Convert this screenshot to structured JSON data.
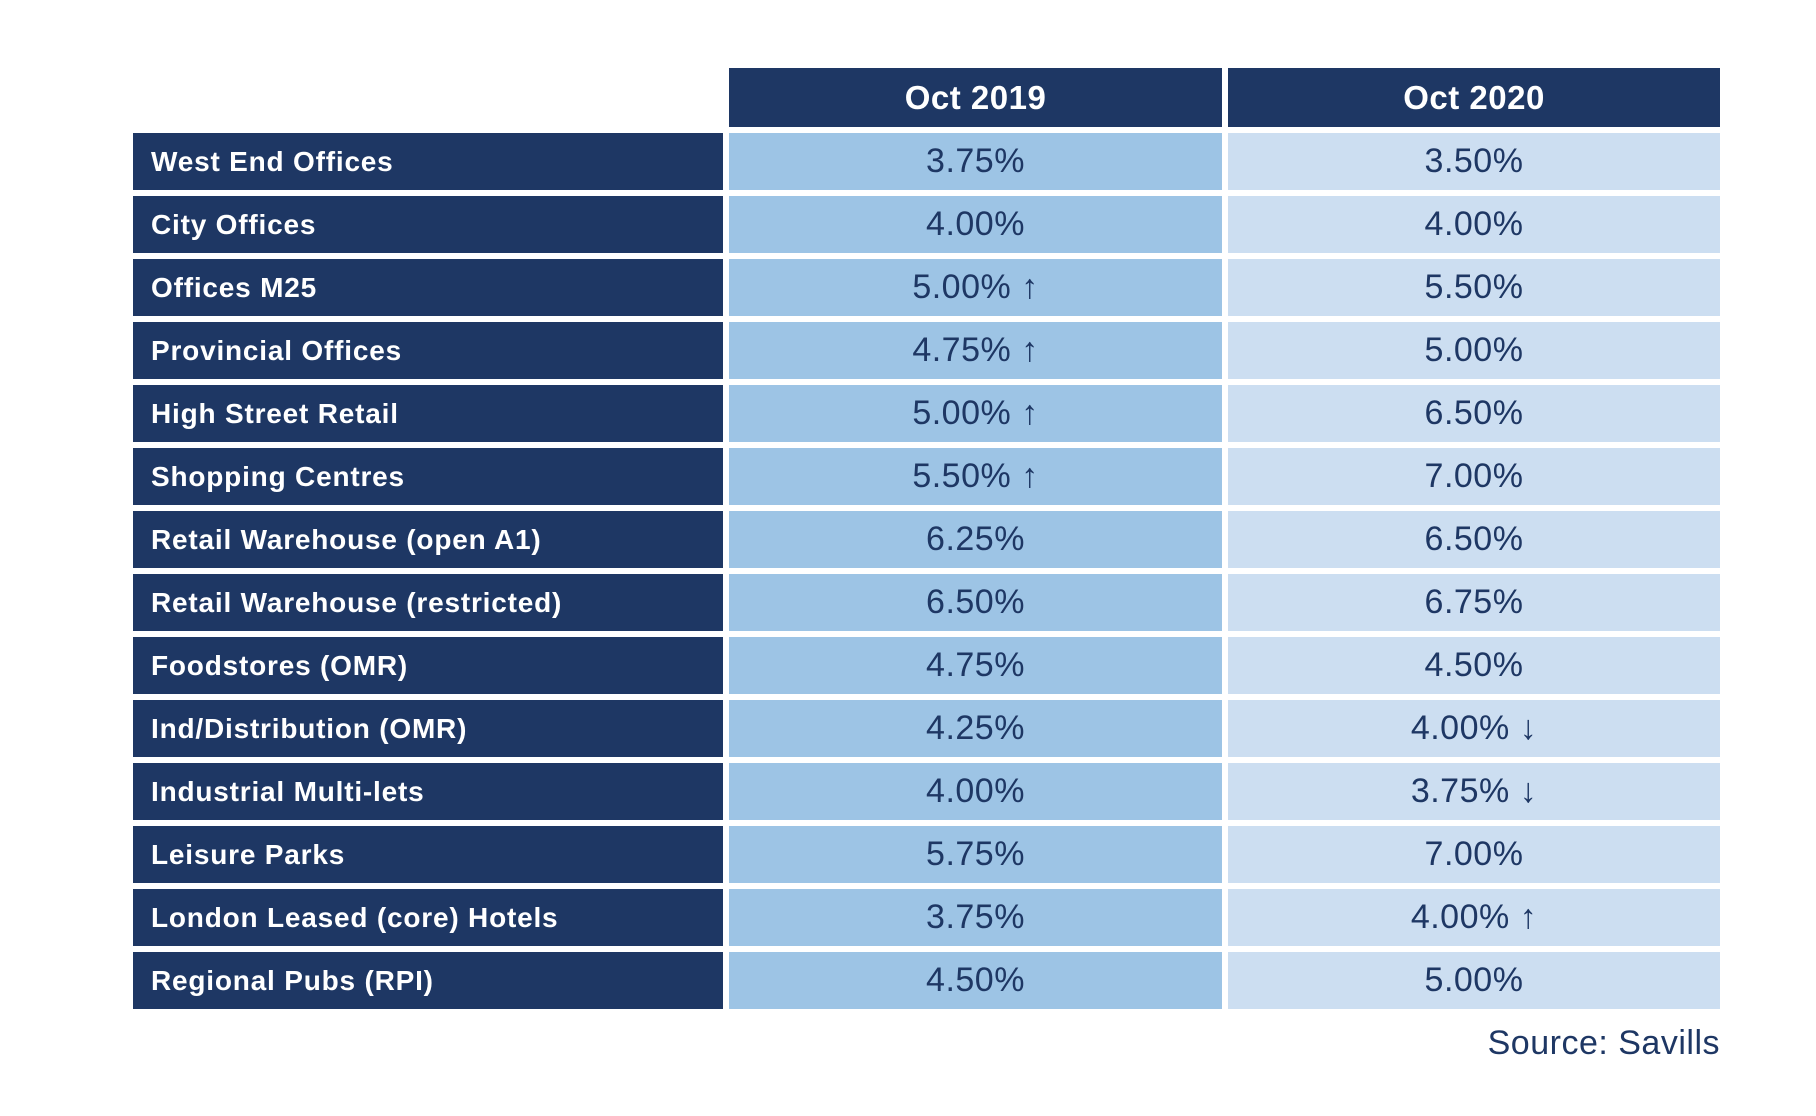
{
  "colors": {
    "navy": "#1e3764",
    "oct2019_column_bg": "#9dc4e5",
    "oct2020_column_bg": "#ccdef1",
    "header_text": "#ffffff",
    "background": "#ffffff"
  },
  "table": {
    "columns": [
      "Oct 2019",
      "Oct 2020"
    ],
    "rows": [
      {
        "label": "West End Offices",
        "oct2019": "3.75%",
        "oct2020": "3.50%"
      },
      {
        "label": "City Offices",
        "oct2019": "4.00%",
        "oct2020": "4.00%"
      },
      {
        "label": "Offices M25",
        "oct2019": "5.00% ↑",
        "oct2020": "5.50%"
      },
      {
        "label": "Provincial Offices",
        "oct2019": "4.75% ↑",
        "oct2020": "5.00%"
      },
      {
        "label": "High Street Retail",
        "oct2019": "5.00% ↑",
        "oct2020": "6.50%"
      },
      {
        "label": "Shopping Centres",
        "oct2019": "5.50% ↑",
        "oct2020": "7.00%"
      },
      {
        "label": "Retail Warehouse (open A1)",
        "oct2019": "6.25%",
        "oct2020": "6.50%"
      },
      {
        "label": "Retail Warehouse (restricted)",
        "oct2019": "6.50%",
        "oct2020": "6.75%"
      },
      {
        "label": "Foodstores (OMR)",
        "oct2019": "4.75%",
        "oct2020": "4.50%"
      },
      {
        "label": "Ind/Distribution (OMR)",
        "oct2019": "4.25%",
        "oct2020": "4.00% ↓"
      },
      {
        "label": "Industrial Multi-lets",
        "oct2019": "4.00%",
        "oct2020": "3.75% ↓"
      },
      {
        "label": "Leisure Parks",
        "oct2019": "5.75%",
        "oct2020": "7.00%"
      },
      {
        "label": "London Leased (core) Hotels",
        "oct2019": "3.75%",
        "oct2020": "4.00% ↑"
      },
      {
        "label": "Regional Pubs (RPI)",
        "oct2019": "4.50%",
        "oct2020": "5.00%"
      }
    ],
    "source": "Source: Savills"
  },
  "chart_data": {
    "type": "table",
    "title": "",
    "columns": [
      "Oct 2019",
      "Oct 2020"
    ],
    "categories": [
      "West End Offices",
      "City Offices",
      "Offices M25",
      "Provincial Offices",
      "High Street Retail",
      "Shopping Centres",
      "Retail Warehouse (open A1)",
      "Retail Warehouse (restricted)",
      "Foodstores (OMR)",
      "Ind/Distribution (OMR)",
      "Industrial Multi-lets",
      "Leisure Parks",
      "London Leased (core) Hotels",
      "Regional Pubs (RPI)"
    ],
    "series": [
      {
        "name": "Oct 2019",
        "unit": "%",
        "values": [
          3.75,
          4.0,
          5.0,
          4.75,
          5.0,
          5.5,
          6.25,
          6.5,
          4.75,
          4.25,
          4.0,
          5.75,
          3.75,
          4.5
        ],
        "change_arrows": [
          "",
          "",
          "up",
          "up",
          "up",
          "up",
          "",
          "",
          "",
          "",
          "",
          "",
          "",
          ""
        ]
      },
      {
        "name": "Oct 2020",
        "unit": "%",
        "values": [
          3.5,
          4.0,
          5.5,
          5.0,
          6.5,
          7.0,
          6.5,
          6.75,
          4.5,
          4.0,
          3.75,
          7.0,
          4.0,
          5.0
        ],
        "change_arrows": [
          "",
          "",
          "",
          "",
          "",
          "",
          "",
          "",
          "",
          "down",
          "down",
          "",
          "up",
          ""
        ]
      }
    ],
    "annotations": [
      "Source: Savills"
    ],
    "legend_position": "none",
    "grid": false
  }
}
